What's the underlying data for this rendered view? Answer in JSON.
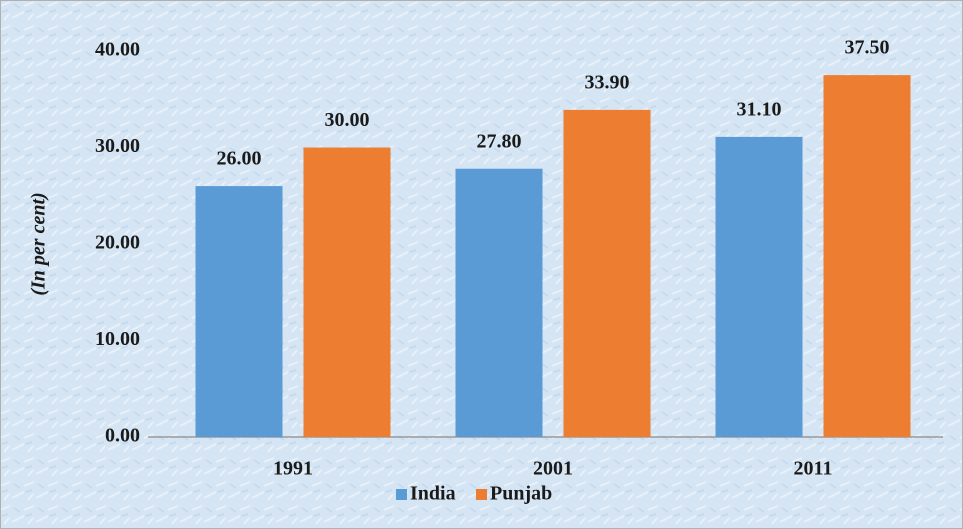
{
  "chart_data": {
    "type": "bar",
    "y_label": "(In per cent)",
    "categories": [
      "1991",
      "2001",
      "2011"
    ],
    "series": [
      {
        "name": "India",
        "color": "#5b9bd5",
        "values": [
          26.0,
          27.8,
          31.1
        ],
        "value_labels": [
          "26.00",
          "27.80",
          "31.10"
        ]
      },
      {
        "name": "Punjab",
        "color": "#ed7d31",
        "values": [
          30.0,
          33.9,
          37.5
        ],
        "value_labels": [
          "30.00",
          "33.90",
          "37.50"
        ]
      }
    ],
    "ylim": [
      0,
      40
    ],
    "yticks": [
      {
        "value": 0,
        "label": "0.00"
      },
      {
        "value": 10,
        "label": "10.00"
      },
      {
        "value": 20,
        "label": "20.00"
      },
      {
        "value": 30,
        "label": "30.00"
      },
      {
        "value": 40,
        "label": "40.00"
      }
    ],
    "grid": false,
    "legend": "bottom"
  }
}
